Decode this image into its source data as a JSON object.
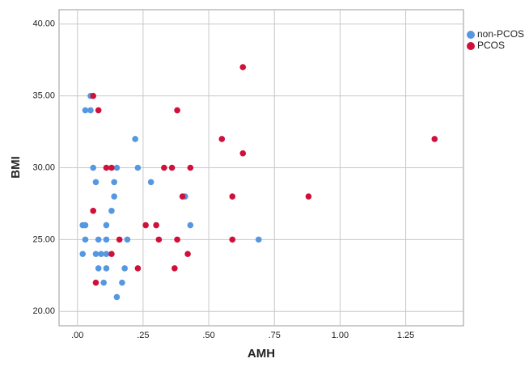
{
  "chart_data": {
    "type": "scatter",
    "x_label": "AMH",
    "y_label": "BMI",
    "xlim": [
      -0.07,
      1.47
    ],
    "ylim": [
      19,
      41
    ],
    "xticks": [
      {
        "value": 0,
        "label": ".00"
      },
      {
        "value": 0.25,
        "label": ".25"
      },
      {
        "value": 0.5,
        "label": ".50"
      },
      {
        "value": 0.75,
        "label": ".75"
      },
      {
        "value": 1,
        "label": "1.00"
      },
      {
        "value": 1.25,
        "label": "1.25"
      }
    ],
    "yticks": [
      {
        "value": 20,
        "label": "20.00"
      },
      {
        "value": 25,
        "label": "25.00"
      },
      {
        "value": 30,
        "label": "30.00"
      },
      {
        "value": 35,
        "label": "35.00"
      },
      {
        "value": 40,
        "label": "40.00"
      }
    ],
    "grid": true,
    "legend_position": "right",
    "series": [
      {
        "name": "non-PCOS",
        "color": "#5597e0",
        "x": [
          0.05,
          0.03,
          0.05,
          0.22,
          0.06,
          0.15,
          0.23,
          0.07,
          0.14,
          0.28,
          0.14,
          0.41,
          0.13,
          0.02,
          0.03,
          0.11,
          0.43,
          0.03,
          0.08,
          0.11,
          0.19,
          0.69,
          0.02,
          0.07,
          0.09,
          0.11,
          0.08,
          0.11,
          0.18,
          0.1,
          0.17,
          0.15
        ],
        "values": [
          35,
          34,
          34,
          32,
          30,
          30,
          30,
          29,
          29,
          29,
          28,
          28,
          27,
          26,
          26,
          26,
          26,
          25,
          25,
          25,
          25,
          25,
          24,
          24,
          24,
          24,
          23,
          23,
          23,
          22,
          22,
          21
        ]
      },
      {
        "name": "PCOS",
        "color": "#d0103a",
        "x": [
          0.63,
          0.06,
          0.08,
          0.38,
          0.55,
          0.63,
          1.36,
          0.11,
          0.13,
          0.33,
          0.36,
          0.43,
          0.4,
          0.59,
          0.88,
          0.06,
          0.26,
          0.3,
          0.16,
          0.31,
          0.38,
          0.59,
          0.13,
          0.42,
          0.23,
          0.37,
          0.07
        ],
        "values": [
          37,
          35,
          34,
          34,
          32,
          31,
          32,
          30,
          30,
          30,
          30,
          30,
          28,
          28,
          28,
          27,
          26,
          26,
          25,
          25,
          25,
          25,
          24,
          24,
          23,
          23,
          22
        ]
      }
    ]
  }
}
